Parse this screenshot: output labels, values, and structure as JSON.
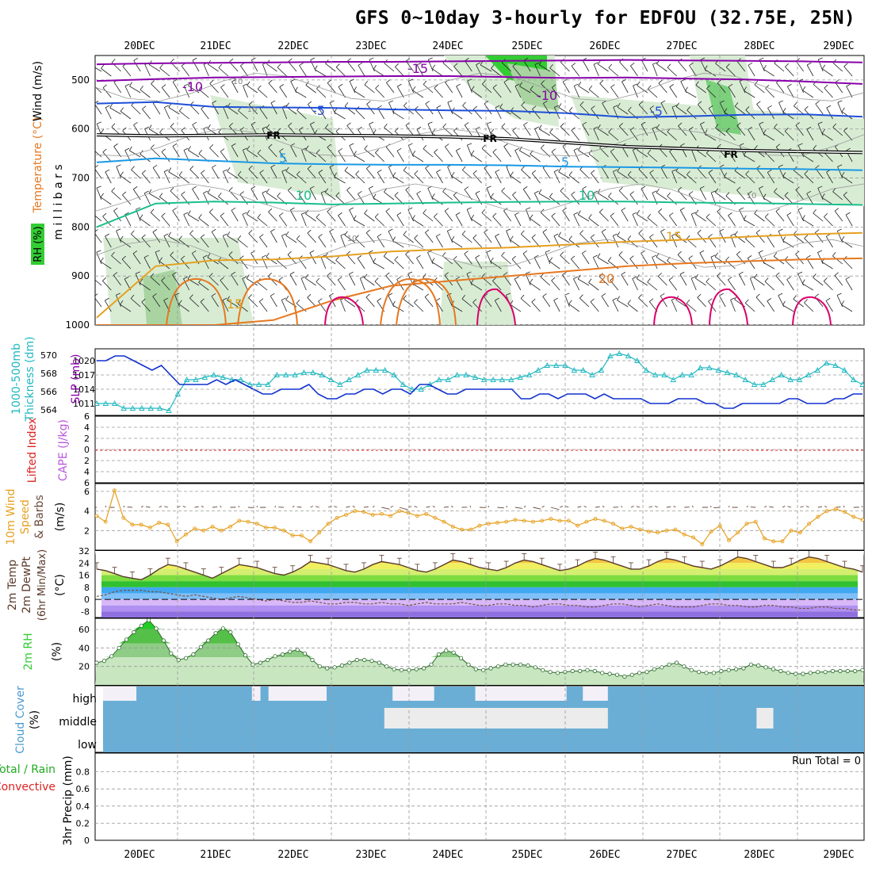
{
  "title": "GFS 0~10day 3-hourly for EDFOU (32.75E, 25N)",
  "colors": {
    "rh_green": "#33cc33",
    "temp_purple": "#8800aa",
    "temp_blue": "#1f4fd8",
    "temp_lightblue": "#1a99e6",
    "temp_teal": "#19bf8c",
    "temp_orange": "#e6a020",
    "temp_darkorange": "#e67820",
    "temp_magenta": "#d9006c",
    "slp_blue": "#1030d0",
    "thick_cyan": "#20b8c0",
    "wind_orange": "#e6a020",
    "cloud_blue": "#6aaed6",
    "li_red": "#dd2222",
    "cape_violet": "#bb55dd"
  },
  "chart_data": [
    {
      "type": "contour",
      "panel": "upper_air",
      "title": "GFS 0~10day 3-hourly for EDFOU (32.75E, 25N)",
      "x_dates": [
        "20DEC",
        "21DEC",
        "22DEC",
        "23DEC",
        "24DEC",
        "25DEC",
        "26DEC",
        "27DEC",
        "28DEC",
        "29DEC"
      ],
      "ylabel": "m i l l i b a r s",
      "left_labels": [
        "RH (%)",
        "Temperature (°C)",
        "Wind (m/s)"
      ],
      "yticks": [
        500,
        600,
        700,
        800,
        900,
        1000
      ],
      "ylim": [
        450,
        1000
      ],
      "contour_labels": [
        "-15",
        "-10",
        "-10",
        "-5",
        "-5",
        "FR",
        "FR",
        "FR",
        "5",
        "5",
        "10",
        "10",
        "15",
        "15",
        "20",
        "10",
        "10",
        "10",
        "10"
      ],
      "isotherms": [
        {
          "name": "-15",
          "values": [
            468,
            466,
            465,
            464,
            463,
            463,
            462,
            461,
            460,
            459,
            460,
            461,
            462,
            464
          ]
        },
        {
          "name": "-10",
          "values": [
            502,
            498,
            495,
            494,
            493,
            492,
            492,
            494,
            496,
            495,
            497,
            499,
            503,
            508
          ]
        },
        {
          "name": "-5",
          "values": [
            548,
            545,
            555,
            556,
            557,
            560,
            562,
            563,
            568,
            576,
            574,
            571,
            570,
            575
          ]
        },
        {
          "name": "FR",
          "values": [
            612,
            614,
            613,
            612,
            613,
            614,
            616,
            620,
            628,
            636,
            640,
            644,
            646,
            648
          ]
        },
        {
          "name": "5",
          "values": [
            668,
            660,
            665,
            670,
            672,
            673,
            673,
            674,
            677,
            678,
            679,
            681,
            682,
            684
          ]
        },
        {
          "name": "10",
          "values": [
            800,
            752,
            748,
            750,
            754,
            752,
            750,
            749,
            748,
            748,
            750,
            751,
            753,
            755
          ]
        },
        {
          "name": "15",
          "values": [
            985,
            880,
            868,
            866,
            860,
            850,
            845,
            842,
            836,
            830,
            826,
            820,
            815,
            812
          ]
        },
        {
          "name": "20",
          "values": [
            1000,
            1000,
            1000,
            990,
            950,
            920,
            910,
            900,
            890,
            880,
            874,
            870,
            866,
            864
          ]
        }
      ]
    },
    {
      "type": "line",
      "panel": "slp_thickness",
      "left_labels": [
        "1000-500mb",
        "Thickness (dm)",
        "SLP (mb)"
      ],
      "yticks_left": [
        564,
        566,
        568,
        570
      ],
      "yticks_right": [
        1011,
        1014,
        1017,
        1020
      ],
      "ylim_slp": [
        1008.5,
        1022.5
      ],
      "series": [
        {
          "name": "SLP (mb)",
          "values": [
            1020,
            1020,
            1021,
            1021,
            1020,
            1019,
            1018,
            1019,
            1017,
            1015,
            1015,
            1015,
            1015,
            1016,
            1015,
            1016,
            1015,
            1014,
            1013,
            1013,
            1014,
            1014,
            1014,
            1015,
            1013,
            1012,
            1012,
            1013,
            1013,
            1014,
            1014,
            1013,
            1014,
            1014,
            1013,
            1015,
            1015,
            1014,
            1013,
            1013,
            1014,
            1014,
            1014,
            1014,
            1014,
            1014,
            1012,
            1012,
            1013,
            1013,
            1012,
            1013,
            1013,
            1013,
            1012,
            1013,
            1012,
            1012,
            1012,
            1012,
            1011,
            1011,
            1011,
            1012,
            1012,
            1012,
            1011,
            1011,
            1010,
            1010,
            1011,
            1011,
            1011,
            1011,
            1011,
            1012,
            1012,
            1011,
            1011,
            1011,
            1012,
            1012,
            1013,
            1013
          ]
        },
        {
          "name": "1000-500mb Thickness (dm)",
          "values": [
            1011,
            1011,
            1011,
            1010,
            1010,
            1010,
            1010,
            1010,
            1009.5,
            1013,
            1016,
            1016,
            1016.5,
            1017,
            1016.5,
            1016,
            1016,
            1015,
            1015,
            1015,
            1017,
            1017,
            1017,
            1017.5,
            1017.5,
            1017,
            1016,
            1015,
            1016,
            1017,
            1018,
            1018,
            1018,
            1017,
            1015,
            1014,
            1014,
            1015,
            1016,
            1016,
            1017,
            1017,
            1016.5,
            1016,
            1016,
            1016,
            1016,
            1016.5,
            1017,
            1018,
            1019,
            1019,
            1019,
            1018,
            1018,
            1017,
            1018,
            1021,
            1021.5,
            1021,
            1020,
            1018,
            1017,
            1017,
            1016,
            1017,
            1017,
            1018.5,
            1018.5,
            1018,
            1017.5,
            1017,
            1016,
            1015,
            1015,
            1016,
            1017,
            1016,
            1016,
            1017,
            1018,
            1019.5,
            1019,
            1018,
            1016,
            1015
          ]
        }
      ]
    },
    {
      "type": "line",
      "panel": "stability",
      "left_labels": [
        "Lifted Index",
        "CAPE (J/kg)"
      ],
      "yticks": [
        6,
        4,
        2,
        0,
        2,
        4,
        6
      ],
      "series": [
        {
          "name": "Lifted Index",
          "values": [
            0
          ]
        }
      ]
    },
    {
      "type": "line",
      "panel": "wind_10m",
      "left_labels": [
        "10m Wind",
        "Speed",
        "& Barbs",
        "(m/s)"
      ],
      "yticks": [
        2,
        4,
        6
      ],
      "ylim": [
        0,
        6.8
      ],
      "series": [
        {
          "name": "Speed",
          "values": [
            3.5,
            2.9,
            6.1,
            3.3,
            2.6,
            2.6,
            2.3,
            2.8,
            2.6,
            0.9,
            1.6,
            2.2,
            2.0,
            2.4,
            2.0,
            2.4,
            3.0,
            2.9,
            2.7,
            2.3,
            2.3,
            2.0,
            1.5,
            1.5,
            0.9,
            1.8,
            2.7,
            3.3,
            3.6,
            4.0,
            3.9,
            3.6,
            3.7,
            3.5,
            4.0,
            3.8,
            3.5,
            3.7,
            3.3,
            2.9,
            2.4,
            2.1,
            2.1,
            2.5,
            2.7,
            2.8,
            2.9,
            3.1,
            3.0,
            2.9,
            3.0,
            3.2,
            3.0,
            3.0,
            2.5,
            2.9,
            3.2,
            3.0,
            2.7,
            2.2,
            2.4,
            2.1,
            1.9,
            1.8,
            2.0,
            2.1,
            1.6,
            1.3,
            0.6,
            1.9,
            2.5,
            1.0,
            1.8,
            2.7,
            2.9,
            1.2,
            0.9,
            0.9,
            2.0,
            1.8,
            2.7,
            3.4,
            4.0,
            4.2,
            3.9,
            3.4,
            3.1
          ]
        }
      ]
    },
    {
      "type": "area",
      "panel": "temp_2m",
      "left_labels": [
        "2m Temp",
        "2m DewPt",
        "(6hr Min/Max)",
        "(°C)"
      ],
      "yticks": [
        32,
        24,
        16,
        8,
        0,
        -8
      ],
      "ylim": [
        -12,
        32
      ],
      "series": [
        {
          "name": "2m Temp",
          "values": [
            20,
            19,
            17,
            15,
            14,
            13,
            16,
            20,
            23,
            22,
            20,
            18,
            16,
            14,
            17,
            20,
            23,
            22,
            21,
            19,
            17,
            16,
            18,
            21,
            25,
            24,
            23,
            21,
            19,
            18,
            20,
            23,
            25,
            24,
            23,
            21,
            19,
            18,
            20,
            23,
            26,
            25,
            23,
            21,
            20,
            19,
            21,
            24,
            26,
            25,
            23,
            21,
            19,
            20,
            22,
            25,
            27,
            26,
            24,
            22,
            20,
            20,
            22,
            25,
            27,
            26,
            24,
            22,
            21,
            20,
            22,
            25,
            28,
            27,
            25,
            23,
            21,
            21,
            23,
            26,
            28,
            27,
            25,
            23,
            21,
            20,
            18
          ]
        },
        {
          "name": "2m DewPt",
          "values": [
            2,
            3,
            5,
            6,
            6,
            6,
            5,
            5,
            4,
            3,
            2,
            3,
            2,
            1,
            0,
            1,
            2,
            1,
            0,
            -1,
            0,
            -1,
            -2,
            -2,
            -1,
            -2,
            -3,
            -3,
            -2,
            -2,
            -3,
            -3,
            -2,
            -3,
            -3,
            -4,
            -3,
            -2,
            -3,
            -3,
            -3,
            -2,
            -3,
            -4,
            -4,
            -3,
            -3,
            -4,
            -4,
            -5,
            -4,
            -3,
            -3,
            -4,
            -4,
            -5,
            -5,
            -4,
            -3,
            -3,
            -4,
            -5,
            -4,
            -3,
            -4,
            -5,
            -5,
            -5,
            -4,
            -3,
            -3,
            -4,
            -4,
            -5,
            -5,
            -4,
            -4,
            -5,
            -5,
            -6,
            -6,
            -5,
            -5,
            -6,
            -6,
            -7,
            -7
          ]
        }
      ]
    },
    {
      "type": "area",
      "panel": "rh_2m",
      "left_labels": [
        "2m RH",
        "(%)"
      ],
      "yticks": [
        20,
        40,
        60
      ],
      "ylim": [
        0,
        72
      ],
      "series": [
        {
          "name": "2m RH",
          "values": [
            24,
            26,
            31,
            40,
            49,
            57,
            64,
            70,
            61,
            48,
            34,
            27,
            29,
            33,
            41,
            48,
            56,
            61,
            57,
            44,
            32,
            22,
            24,
            27,
            31,
            33,
            36,
            38,
            34,
            27,
            20,
            18,
            19,
            21,
            24,
            27,
            27,
            26,
            24,
            20,
            17,
            16,
            16,
            17,
            18,
            22,
            33,
            37,
            35,
            29,
            22,
            17,
            16,
            18,
            20,
            22,
            22,
            22,
            21,
            19,
            16,
            14,
            13,
            14,
            15,
            15,
            16,
            15,
            13,
            12,
            11,
            9,
            11,
            13,
            14,
            17,
            19,
            22,
            24,
            20,
            16,
            14,
            13,
            13,
            15,
            16,
            17,
            18,
            22,
            21,
            19,
            17,
            15,
            13,
            12,
            12,
            13,
            14,
            14,
            15,
            15,
            15,
            15,
            16
          ]
        }
      ]
    },
    {
      "type": "heatmap",
      "panel": "cloud",
      "left_labels": [
        "Cloud Cover",
        "(%)"
      ],
      "ylabels": [
        "high",
        "middle",
        "low"
      ],
      "series": [
        {
          "name": "high",
          "values": [
            0,
            0,
            0,
            0,
            1,
            1,
            1,
            1,
            1,
            1,
            1,
            1,
            1,
            1,
            1,
            1,
            1,
            1,
            0,
            1,
            0,
            0,
            0,
            0,
            0,
            0,
            0,
            1,
            1,
            1,
            1,
            1,
            1,
            1,
            1,
            0,
            0,
            0,
            0,
            0,
            1,
            1,
            1,
            1,
            1,
            0,
            0,
            0,
            0,
            0,
            0,
            0,
            0,
            0,
            0,
            0,
            1,
            1,
            0,
            0,
            0,
            1,
            1,
            1,
            1,
            1,
            1,
            1,
            1,
            1,
            1,
            1,
            1,
            1,
            1,
            1,
            1,
            1,
            1,
            1,
            1,
            1,
            1,
            1,
            1,
            1,
            1,
            1,
            1,
            1,
            1,
            1
          ]
        },
        {
          "name": "middle",
          "values": [
            1,
            1,
            1,
            1,
            1,
            1,
            1,
            1,
            1,
            1,
            1,
            1,
            1,
            1,
            1,
            1,
            1,
            1,
            1,
            1,
            1,
            1,
            1,
            1,
            1,
            1,
            1,
            1,
            1,
            1,
            1,
            1,
            1,
            1,
            0,
            0,
            0,
            0,
            0,
            0,
            0,
            0,
            0,
            0,
            0,
            0,
            0,
            0,
            0,
            0,
            0,
            0,
            0,
            0,
            0,
            0,
            0,
            0,
            0,
            0,
            0,
            1,
            1,
            1,
            1,
            1,
            1,
            1,
            1,
            1,
            1,
            1,
            1,
            1,
            1,
            1,
            1,
            1,
            1,
            0,
            0,
            1,
            1,
            1,
            1,
            1,
            1,
            1,
            1,
            1,
            1,
            1
          ]
        }
      ]
    },
    {
      "type": "bar",
      "panel": "precip",
      "left_labels": [
        "Total / Rain",
        "Convective",
        "3hr Precip (mm)"
      ],
      "yticks": [
        0,
        0.2,
        0.4,
        0.6,
        0.8
      ],
      "ylim": [
        0,
        1.0
      ],
      "annotation": "Run Total = 0",
      "series": [
        {
          "name": "3hr Precip (mm)",
          "values": [
            0
          ]
        }
      ]
    }
  ]
}
